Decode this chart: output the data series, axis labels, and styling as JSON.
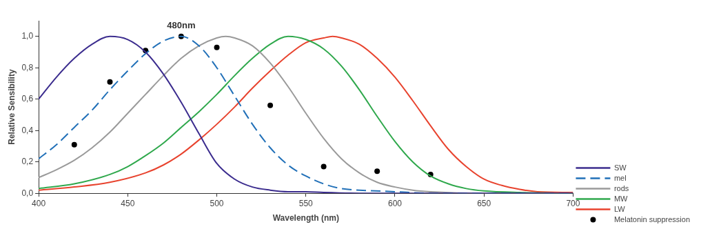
{
  "chart_data": {
    "type": "line",
    "xlabel": "Wavelength (nm)",
    "ylabel": "Relative Sensibility",
    "xlim": [
      400,
      700
    ],
    "xticks": [
      400,
      450,
      500,
      550,
      600,
      650,
      700
    ],
    "ylim": [
      0,
      1.1
    ],
    "yticks": [
      {
        "value": 0,
        "label": "0,0"
      },
      {
        "value": 0.2,
        "label": "0,2"
      },
      {
        "value": 0.4,
        "label": "0,4"
      },
      {
        "value": 0.6,
        "label": "0,6"
      },
      {
        "value": 0.8,
        "label": "0,8"
      },
      {
        "value": 1.0,
        "label": "1,0"
      }
    ],
    "grid": false,
    "legend": "bottom right",
    "marker": "none",
    "annotations": [
      {
        "text": "480nm",
        "x": 480,
        "y": 1.0
      }
    ],
    "series": [
      {
        "name": "SW",
        "color": "#3b2c8e",
        "line_style": "solid",
        "x": [
          400,
          410,
          420,
          430,
          440,
          450,
          460,
          470,
          480,
          490,
          500,
          510,
          520,
          530,
          540,
          550,
          560,
          580,
          600,
          650,
          700
        ],
        "values": [
          0.6,
          0.74,
          0.86,
          0.95,
          1.0,
          0.98,
          0.9,
          0.76,
          0.58,
          0.38,
          0.19,
          0.09,
          0.04,
          0.02,
          0.01,
          0.01,
          0.005,
          0,
          0,
          0,
          0
        ]
      },
      {
        "name": "mel",
        "color": "#2170b8",
        "line_style": "dashed",
        "x": [
          400,
          410,
          420,
          430,
          440,
          450,
          460,
          470,
          480,
          490,
          500,
          510,
          520,
          530,
          540,
          550,
          560,
          570,
          580,
          600,
          620,
          650,
          700
        ],
        "values": [
          0.22,
          0.31,
          0.42,
          0.53,
          0.66,
          0.78,
          0.89,
          0.97,
          1.0,
          0.94,
          0.8,
          0.62,
          0.44,
          0.29,
          0.18,
          0.11,
          0.06,
          0.03,
          0.02,
          0.01,
          0,
          0,
          0
        ]
      },
      {
        "name": "rods",
        "color": "#9a9a9a",
        "line_style": "solid",
        "x": [
          400,
          410,
          420,
          430,
          440,
          450,
          460,
          470,
          480,
          490,
          500,
          505,
          510,
          520,
          530,
          540,
          550,
          560,
          570,
          580,
          590,
          600,
          610,
          620,
          650,
          700
        ],
        "values": [
          0.1,
          0.15,
          0.21,
          0.29,
          0.39,
          0.51,
          0.63,
          0.75,
          0.86,
          0.94,
          0.99,
          1.0,
          0.99,
          0.94,
          0.83,
          0.68,
          0.51,
          0.35,
          0.22,
          0.13,
          0.07,
          0.04,
          0.02,
          0.01,
          0,
          0
        ]
      },
      {
        "name": "MW",
        "color": "#2fa84c",
        "line_style": "solid",
        "x": [
          400,
          420,
          440,
          450,
          460,
          470,
          480,
          490,
          500,
          510,
          520,
          530,
          540,
          550,
          560,
          570,
          580,
          590,
          600,
          610,
          620,
          630,
          640,
          650,
          670,
          700
        ],
        "values": [
          0.03,
          0.06,
          0.12,
          0.17,
          0.24,
          0.32,
          0.42,
          0.52,
          0.63,
          0.75,
          0.86,
          0.95,
          1.0,
          0.98,
          0.92,
          0.81,
          0.66,
          0.49,
          0.33,
          0.2,
          0.11,
          0.06,
          0.03,
          0.015,
          0.005,
          0
        ]
      },
      {
        "name": "LW",
        "color": "#e8432e",
        "line_style": "solid",
        "x": [
          400,
          420,
          440,
          460,
          470,
          480,
          490,
          500,
          510,
          520,
          530,
          540,
          550,
          560,
          565,
          570,
          580,
          590,
          600,
          610,
          620,
          630,
          640,
          650,
          660,
          670,
          680,
          700
        ],
        "values": [
          0.02,
          0.04,
          0.07,
          0.13,
          0.18,
          0.25,
          0.34,
          0.44,
          0.55,
          0.67,
          0.78,
          0.88,
          0.96,
          0.99,
          1.0,
          0.99,
          0.95,
          0.86,
          0.74,
          0.59,
          0.43,
          0.28,
          0.17,
          0.09,
          0.05,
          0.025,
          0.01,
          0.005
        ]
      },
      {
        "name": "Melatonin suppression",
        "type": "scatter",
        "marker": "circle",
        "color": "#000000",
        "x": [
          420,
          440,
          460,
          480,
          500,
          530,
          560,
          590,
          620
        ],
        "values": [
          0.31,
          0.71,
          0.91,
          1.0,
          0.93,
          0.56,
          0.17,
          0.14,
          0.12
        ]
      }
    ]
  }
}
